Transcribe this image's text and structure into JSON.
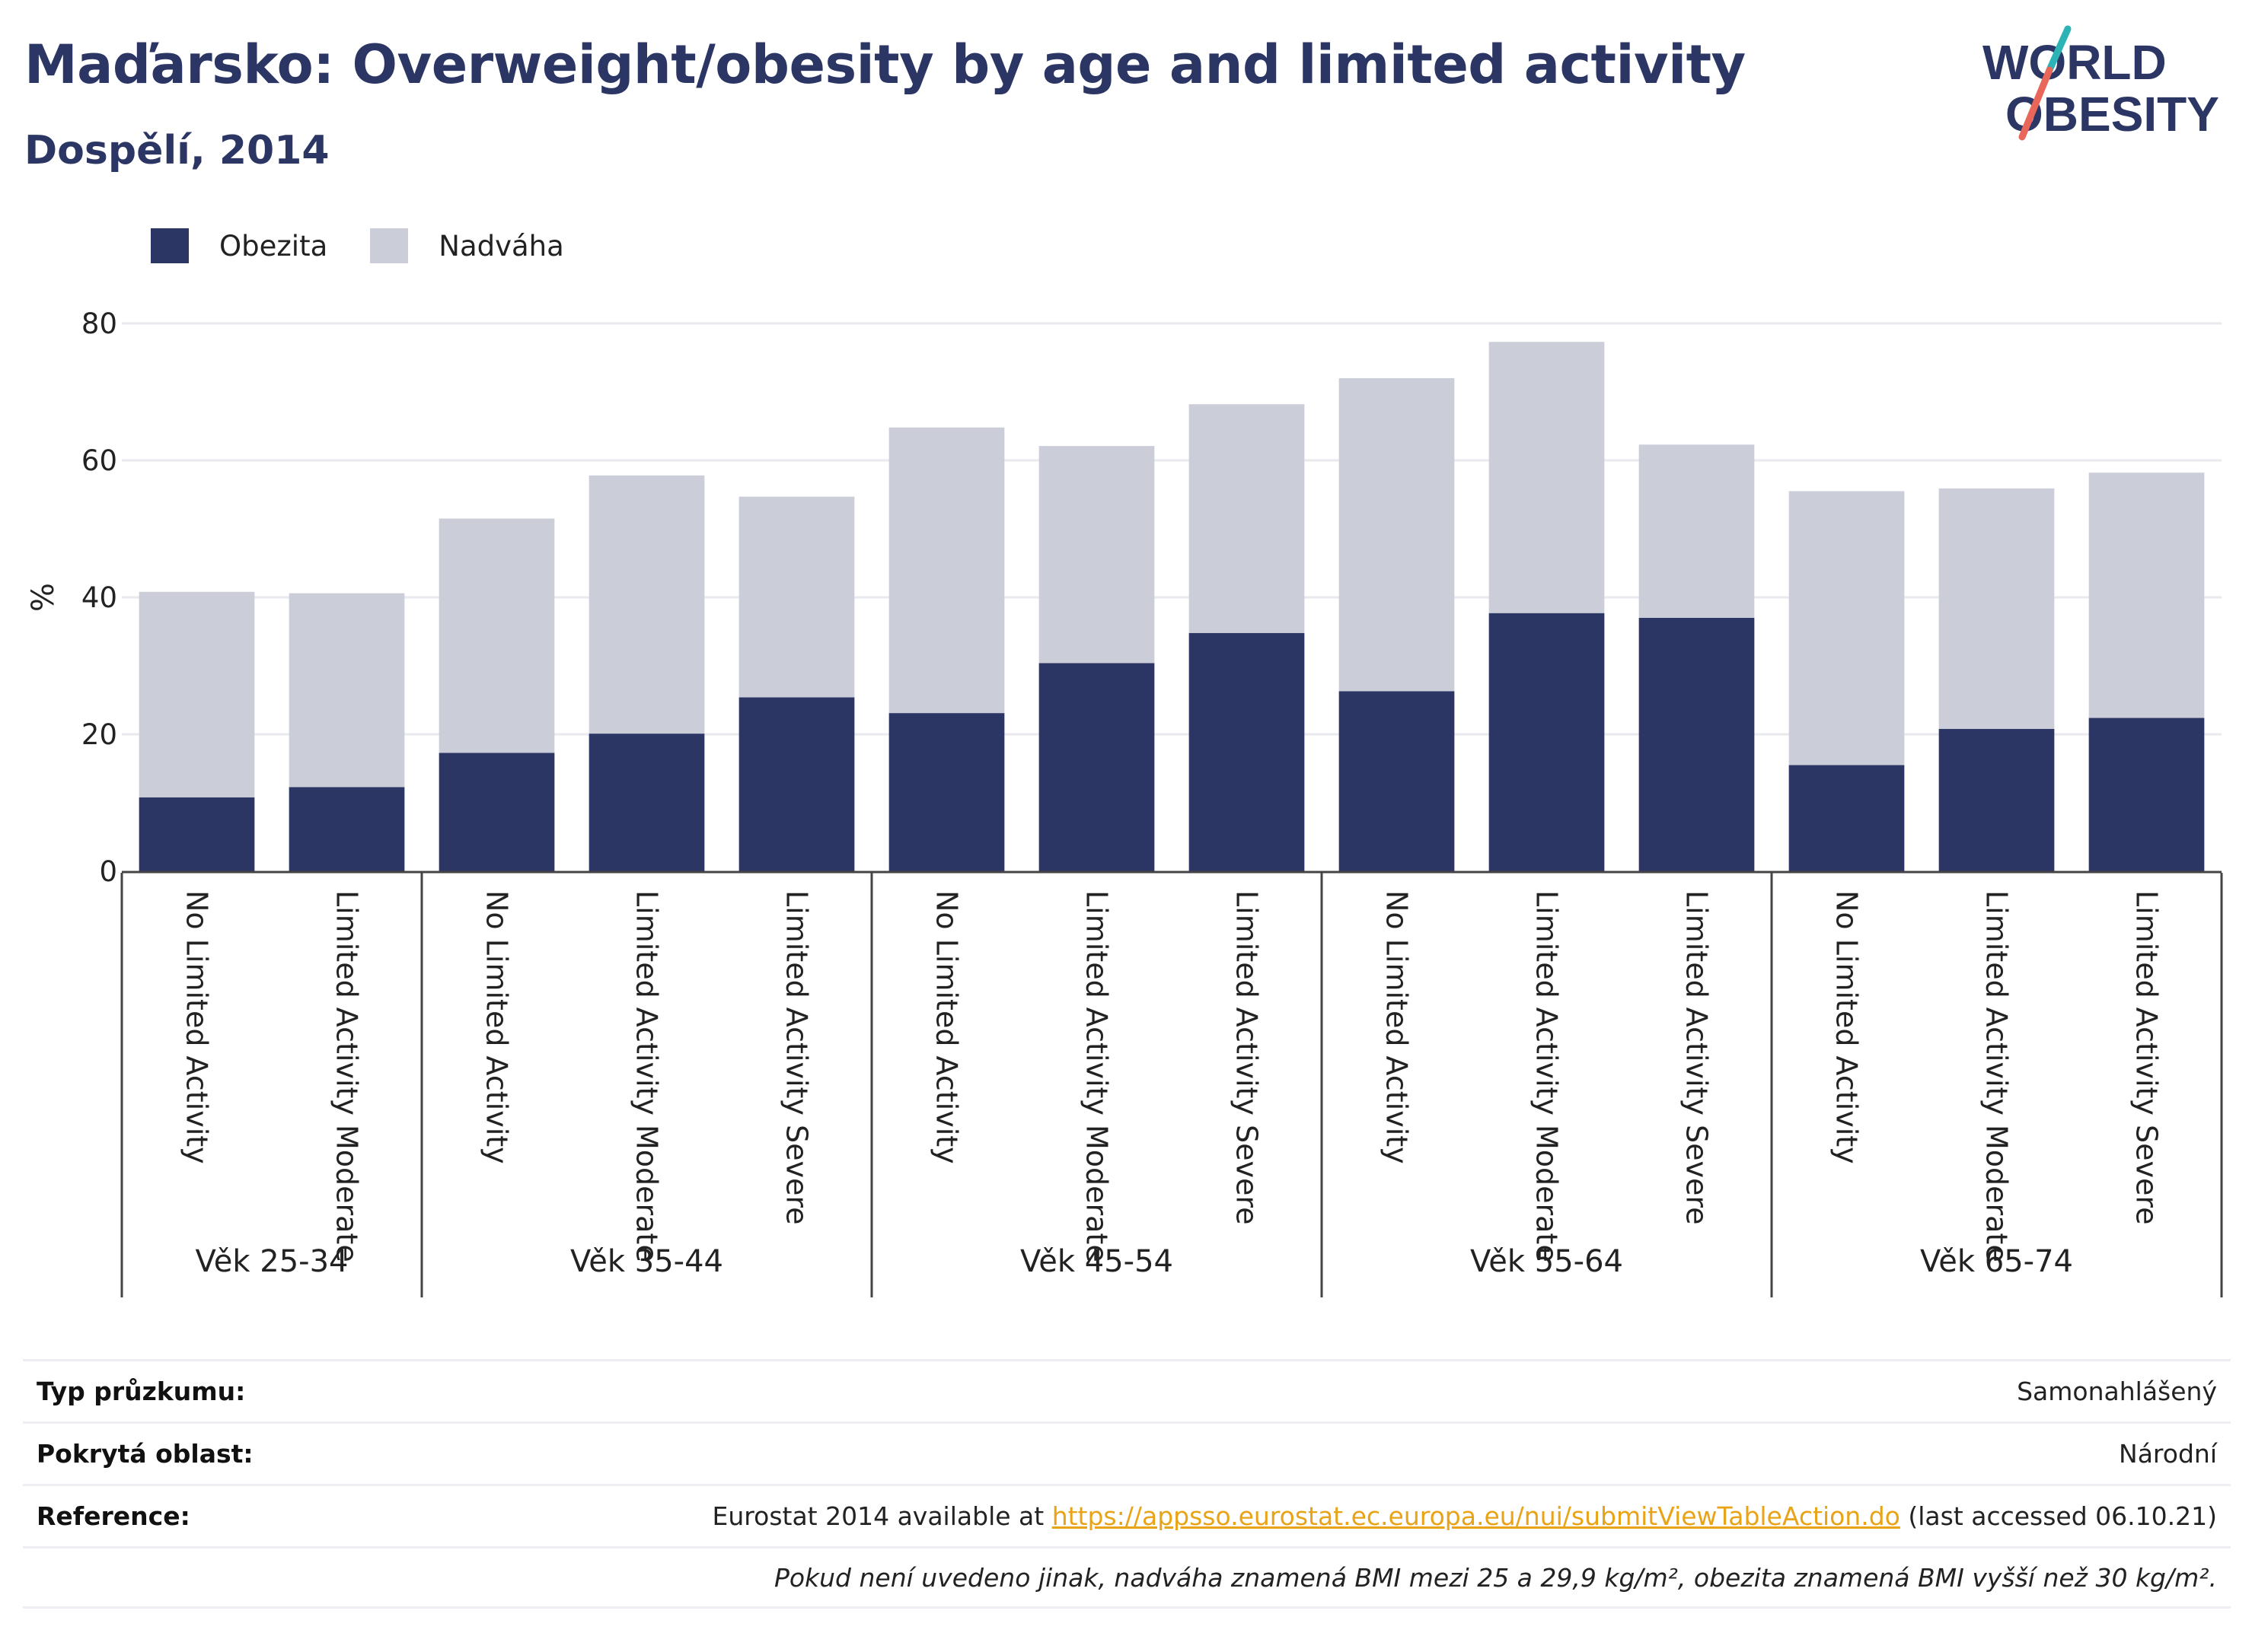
{
  "header": {
    "title": "Maďarsko: Overweight/obesity by age and limited activity",
    "subtitle": "Dospělí, 2014"
  },
  "logo": {
    "line1": "WORLD",
    "line2": "OBESITY"
  },
  "legend": [
    {
      "label": "Obezita",
      "color": "#2b3664"
    },
    {
      "label": "Nadváha",
      "color": "#cbcdd8"
    }
  ],
  "chart_data": {
    "type": "bar",
    "stacked": true,
    "ylabel": "%",
    "ylim": [
      0,
      80
    ],
    "yticks": [
      0,
      20,
      40,
      60,
      80
    ],
    "grid": true,
    "legend_position": "top-left",
    "groups": [
      {
        "label": "Věk 25-34",
        "categories": [
          "No Limited Activity",
          "Limited Activity Moderate"
        ]
      },
      {
        "label": "Věk 35-44",
        "categories": [
          "No Limited Activity",
          "Limited Activity Moderate",
          "Limited Activity Severe"
        ]
      },
      {
        "label": "Věk 45-54",
        "categories": [
          "No Limited Activity",
          "Limited Activity Moderate",
          "Limited Activity Severe"
        ]
      },
      {
        "label": "Věk 55-64",
        "categories": [
          "No Limited Activity",
          "Limited Activity Moderate",
          "Limited Activity Severe"
        ]
      },
      {
        "label": "Věk 65-74",
        "categories": [
          "No Limited Activity",
          "Limited Activity Moderate",
          "Limited Activity Severe"
        ]
      }
    ],
    "series": [
      {
        "name": "Obezita",
        "color": "#2b3664",
        "values": [
          10.8,
          12.3,
          17.3,
          20.1,
          25.4,
          23.1,
          30.4,
          34.8,
          26.3,
          37.7,
          37.0,
          15.5,
          20.8,
          22.4
        ]
      },
      {
        "name": "Nadváha",
        "color": "#cbcdd8",
        "values": [
          30.0,
          28.3,
          34.2,
          37.7,
          29.3,
          41.7,
          31.7,
          33.4,
          45.7,
          39.6,
          25.3,
          40.0,
          35.1,
          35.8
        ]
      }
    ]
  },
  "info": {
    "survey_label": "Typ průzkumu:",
    "survey_value": "Samonahlášený",
    "area_label": "Pokrytá oblast:",
    "area_value": "Národní",
    "reference_label": "Reference:",
    "reference_prefix": "Eurostat 2014 available at ",
    "reference_link": "https://appsso.eurostat.ec.europa.eu/nui/submitViewTableAction.do",
    "reference_suffix": " (last accessed 06.10.21)",
    "note": "Pokud není uvedeno jinak, nadváha znamená BMI mezi 25 a 29,9 kg/m², obezita znamená BMI vyšší než 30 kg/m²."
  }
}
